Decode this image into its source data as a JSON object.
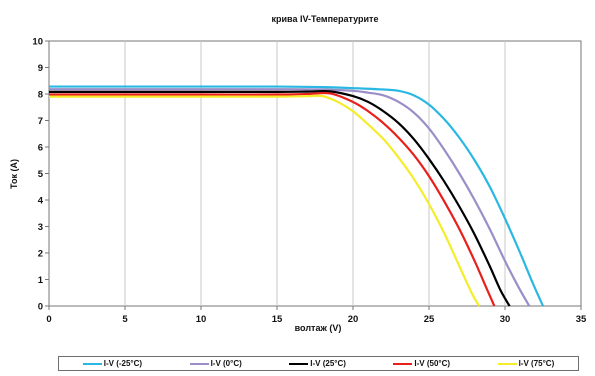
{
  "chart_data": {
    "type": "line",
    "title": "крива IV-Температурите",
    "xlabel": "волтаж (V)",
    "ylabel": "Ток (A)",
    "xlim": [
      0,
      35
    ],
    "ylim": [
      0,
      10
    ],
    "xticks": [
      "0",
      "5",
      "10",
      "15",
      "20",
      "25",
      "30",
      "35"
    ],
    "yticks": [
      "0",
      "1",
      "2",
      "3",
      "4",
      "5",
      "6",
      "7",
      "8",
      "9",
      "10"
    ],
    "grid": "vertical",
    "legend_position": "bottom",
    "series": [
      {
        "name": "I-V (-25°C)",
        "color": "#2ab8e2",
        "x": [
          0,
          5,
          10,
          15,
          18,
          20,
          22,
          23,
          24,
          25,
          26,
          27,
          28,
          29,
          30,
          31,
          31.8,
          32.5
        ],
        "y": [
          8.28,
          8.28,
          8.28,
          8.28,
          8.26,
          8.22,
          8.17,
          8.12,
          7.95,
          7.6,
          7.05,
          6.35,
          5.5,
          4.5,
          3.3,
          2.0,
          0.9,
          0
        ]
      },
      {
        "name": "I-V (0°C)",
        "color": "#9b8ec8",
        "x": [
          0,
          5,
          10,
          15,
          18,
          20,
          21,
          22,
          23,
          24,
          25,
          26,
          27,
          28,
          29,
          30,
          30.9,
          31.6
        ],
        "y": [
          8.18,
          8.18,
          8.18,
          8.18,
          8.17,
          8.12,
          8.05,
          7.95,
          7.7,
          7.3,
          6.7,
          5.9,
          5.0,
          4.0,
          2.9,
          1.7,
          0.7,
          0
        ]
      },
      {
        "name": "I-V (25°C)",
        "color": "#000000",
        "x": [
          0,
          5,
          10,
          15,
          17,
          18.5,
          20,
          21,
          22,
          23,
          24,
          25,
          26,
          27,
          28,
          29,
          29.7,
          30.3
        ],
        "y": [
          8.08,
          8.08,
          8.08,
          8.08,
          8.09,
          8.1,
          7.92,
          7.7,
          7.35,
          6.9,
          6.3,
          5.55,
          4.7,
          3.75,
          2.7,
          1.5,
          0.6,
          0
        ]
      },
      {
        "name": "I-V (50°C)",
        "color": "#e8201c",
        "x": [
          0,
          5,
          10,
          15,
          17,
          18.5,
          20,
          21,
          22,
          23,
          24,
          25,
          26,
          27,
          28,
          28.8,
          29.3
        ],
        "y": [
          7.98,
          7.98,
          7.98,
          7.98,
          8.0,
          8.02,
          7.7,
          7.35,
          6.9,
          6.35,
          5.7,
          4.9,
          3.95,
          2.9,
          1.7,
          0.65,
          0
        ]
      },
      {
        "name": "I-V (75°C)",
        "color": "#f5ec2a",
        "x": [
          0,
          5,
          10,
          15,
          17,
          18,
          19,
          20,
          21,
          22,
          23,
          24,
          25,
          26,
          27,
          27.8,
          28.3
        ],
        "y": [
          7.9,
          7.9,
          7.9,
          7.9,
          7.92,
          7.92,
          7.7,
          7.35,
          6.85,
          6.3,
          5.6,
          4.8,
          3.85,
          2.75,
          1.5,
          0.5,
          0
        ]
      }
    ]
  }
}
